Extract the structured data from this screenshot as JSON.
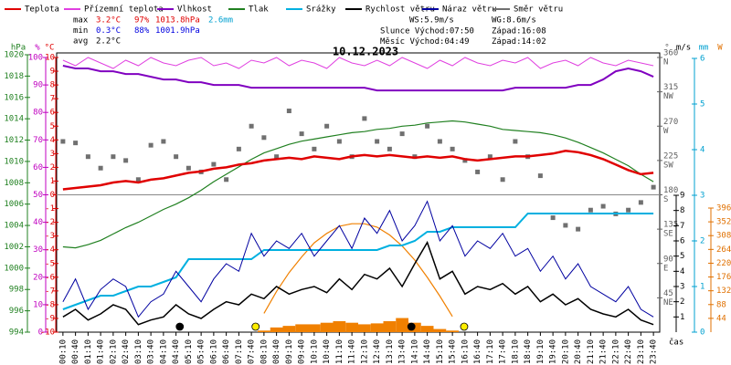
{
  "chart_data": {
    "type": "line",
    "title": "10.12.2023",
    "x_label": "čas",
    "categories": [
      "00:10",
      "00:40",
      "01:10",
      "01:40",
      "02:10",
      "02:40",
      "03:10",
      "03:40",
      "04:10",
      "04:40",
      "05:10",
      "05:40",
      "06:10",
      "06:40",
      "07:10",
      "07:40",
      "08:10",
      "08:40",
      "09:10",
      "09:40",
      "10:10",
      "10:40",
      "11:10",
      "11:40",
      "12:10",
      "12:40",
      "13:10",
      "13:40",
      "14:10",
      "14:40",
      "15:10",
      "15:40",
      "16:10",
      "16:40",
      "17:10",
      "17:40",
      "18:10",
      "18:40",
      "19:10",
      "19:40",
      "20:10",
      "20:40",
      "21:10",
      "21:40",
      "22:10",
      "22:40",
      "23:10",
      "23:40"
    ],
    "axes": {
      "hpa": {
        "label": "hPa",
        "color": "#208020",
        "lim": [
          994,
          1020
        ],
        "ticks": [
          994,
          996,
          998,
          1000,
          1002,
          1004,
          1006,
          1008,
          1010,
          1012,
          1014,
          1016,
          1018,
          1020
        ]
      },
      "pct": {
        "label": "%",
        "color": "#c000c0",
        "lim": [
          0,
          100
        ],
        "ticks": [
          0,
          10,
          20,
          30,
          40,
          50,
          60,
          70,
          80,
          90,
          100
        ]
      },
      "temp": {
        "label": "°C",
        "color": "#e00000",
        "lim": [
          -10,
          10
        ],
        "ticks": [
          -10,
          -9,
          -8,
          -7,
          -6,
          -5,
          -4,
          -3,
          -2,
          -1,
          0,
          1,
          2,
          3,
          4,
          5,
          6,
          7,
          8,
          9,
          10
        ]
      },
      "deg": {
        "label": "°",
        "color": "#606060",
        "lim": [
          0,
          360
        ],
        "ticks": [
          45,
          90,
          135,
          180,
          225,
          270,
          315,
          360
        ],
        "compass": [
          "NE",
          "E",
          "SE",
          "S",
          "SW",
          "W",
          "NW",
          "N"
        ]
      },
      "ms": {
        "label": "m/s",
        "color": "#000000",
        "lim": [
          0,
          9
        ],
        "ticks": [
          1,
          2,
          3,
          4,
          5,
          6,
          7,
          8,
          9
        ]
      },
      "mm": {
        "label": "mm",
        "color": "#00a0d0",
        "lim": [
          0,
          6
        ],
        "ticks": [
          0,
          1,
          2,
          3,
          4,
          5,
          6
        ]
      },
      "w": {
        "label": "W",
        "color": "#e07000",
        "lim": [
          0,
          396
        ],
        "ticks": [
          44,
          88,
          132,
          176,
          220,
          264,
          308,
          352,
          396
        ]
      }
    },
    "series": [
      {
        "name": "Teplota",
        "color": "#e00000",
        "axis": "temp",
        "style": "line",
        "width": 2.5,
        "values": [
          0.4,
          0.5,
          0.6,
          0.7,
          0.9,
          1.0,
          0.9,
          1.1,
          1.2,
          1.4,
          1.6,
          1.7,
          1.9,
          2.0,
          2.2,
          2.3,
          2.5,
          2.6,
          2.7,
          2.6,
          2.8,
          2.7,
          2.6,
          2.8,
          2.9,
          2.8,
          2.9,
          2.8,
          2.7,
          2.8,
          2.7,
          2.8,
          2.6,
          2.5,
          2.6,
          2.7,
          2.8,
          2.8,
          2.9,
          3.0,
          3.2,
          3.1,
          2.9,
          2.6,
          2.2,
          1.8,
          1.5,
          1.6
        ]
      },
      {
        "name": "Přízemní teplota",
        "color": "#e040e0",
        "axis": "pct",
        "style": "line",
        "width": 1,
        "values": [
          99,
          97,
          100,
          98,
          96,
          99,
          97,
          100,
          98,
          97,
          99,
          100,
          97,
          98,
          96,
          99,
          98,
          100,
          97,
          99,
          98,
          96,
          100,
          98,
          97,
          99,
          97,
          100,
          98,
          96,
          99,
          97,
          100,
          98,
          97,
          99,
          98,
          100,
          96,
          98,
          99,
          97,
          100,
          98,
          97,
          99,
          98,
          97
        ]
      },
      {
        "name": "Vlhkost",
        "color": "#8000c0",
        "axis": "pct",
        "style": "line",
        "width": 2,
        "values": [
          97,
          96,
          96,
          95,
          95,
          94,
          94,
          93,
          92,
          92,
          91,
          91,
          90,
          90,
          90,
          89,
          89,
          89,
          89,
          89,
          89,
          89,
          89,
          89,
          89,
          88,
          88,
          88,
          88,
          88,
          88,
          88,
          88,
          88,
          88,
          88,
          89,
          89,
          89,
          89,
          89,
          90,
          90,
          92,
          95,
          96,
          95,
          93
        ]
      },
      {
        "name": "Tlak",
        "color": "#208020",
        "axis": "hpa",
        "style": "line",
        "width": 1.2,
        "values": [
          1002.0,
          1001.9,
          1002.2,
          1002.6,
          1003.2,
          1003.8,
          1004.3,
          1004.9,
          1005.5,
          1006.0,
          1006.6,
          1007.3,
          1008.1,
          1008.8,
          1009.5,
          1010.2,
          1010.8,
          1011.2,
          1011.6,
          1011.9,
          1012.1,
          1012.3,
          1012.5,
          1012.7,
          1012.8,
          1013.0,
          1013.1,
          1013.3,
          1013.4,
          1013.6,
          1013.7,
          1013.8,
          1013.7,
          1013.5,
          1013.3,
          1013.0,
          1012.9,
          1012.8,
          1012.7,
          1012.5,
          1012.2,
          1011.8,
          1011.3,
          1010.8,
          1010.2,
          1009.6,
          1008.8,
          1008.1
        ]
      },
      {
        "name": "Srážky",
        "color": "#00b0e0",
        "axis": "mm",
        "style": "line",
        "width": 2,
        "values": [
          0.5,
          0.6,
          0.7,
          0.8,
          0.8,
          0.9,
          1.0,
          1.0,
          1.1,
          1.2,
          1.6,
          1.6,
          1.6,
          1.6,
          1.6,
          1.6,
          1.8,
          1.8,
          1.8,
          1.8,
          1.8,
          1.8,
          1.8,
          1.8,
          1.8,
          1.8,
          1.9,
          1.9,
          2.0,
          2.2,
          2.2,
          2.3,
          2.3,
          2.3,
          2.3,
          2.3,
          2.3,
          2.6,
          2.6,
          2.6,
          2.6,
          2.6,
          2.6,
          2.6,
          2.6,
          2.6,
          2.6,
          2.6
        ]
      },
      {
        "name": "Rychlost větru",
        "color": "#000000",
        "axis": "ms",
        "style": "line",
        "width": 1.5,
        "values": [
          1.0,
          1.5,
          0.8,
          1.2,
          1.8,
          1.5,
          0.5,
          0.8,
          1.0,
          1.8,
          1.2,
          0.9,
          1.5,
          2.0,
          1.8,
          2.5,
          2.2,
          3.0,
          2.5,
          2.8,
          3.0,
          2.6,
          3.5,
          2.8,
          3.8,
          3.5,
          4.2,
          3.0,
          4.5,
          5.9,
          3.5,
          4.0,
          2.5,
          3.0,
          2.8,
          3.2,
          2.5,
          3.0,
          2.0,
          2.5,
          1.8,
          2.2,
          1.5,
          1.2,
          1.0,
          1.5,
          0.8,
          0.5
        ]
      },
      {
        "name": "Náraz větru",
        "color": "#0000a0",
        "axis": "ms",
        "style": "line",
        "width": 1,
        "values": [
          2.0,
          3.5,
          1.5,
          2.8,
          3.5,
          3.0,
          1.0,
          2.0,
          2.5,
          4.0,
          3.0,
          2.0,
          3.5,
          4.5,
          4.0,
          6.5,
          5.0,
          6.0,
          5.5,
          6.5,
          5.0,
          6.0,
          7.0,
          5.5,
          7.5,
          6.5,
          8.0,
          6.0,
          7.0,
          8.6,
          6.0,
          7.0,
          5.0,
          6.0,
          5.5,
          6.5,
          5.0,
          5.5,
          4.0,
          5.0,
          3.5,
          4.5,
          3.0,
          2.5,
          2.0,
          3.0,
          1.5,
          1.0
        ]
      },
      {
        "name": "Směr větru",
        "color": "#707070",
        "axis": "deg",
        "style": "points",
        "values": [
          250,
          248,
          230,
          215,
          230,
          225,
          200,
          245,
          250,
          230,
          215,
          210,
          220,
          200,
          240,
          270,
          255,
          230,
          290,
          260,
          240,
          270,
          250,
          230,
          280,
          250,
          240,
          260,
          230,
          270,
          250,
          240,
          225,
          210,
          230,
          200,
          250,
          230,
          205,
          150,
          140,
          135,
          160,
          165,
          155,
          160,
          170,
          190
        ]
      }
    ],
    "sun_elevation": {
      "color": "#f08000",
      "axis": "w",
      "values": [
        null,
        null,
        null,
        null,
        null,
        null,
        null,
        null,
        null,
        null,
        null,
        null,
        null,
        null,
        null,
        null,
        60,
        130,
        190,
        240,
        285,
        315,
        338,
        346,
        346,
        335,
        310,
        275,
        230,
        175,
        115,
        50,
        null,
        null,
        null,
        null,
        null,
        null,
        null,
        null,
        null,
        null,
        null,
        null,
        null,
        null,
        null,
        null
      ]
    },
    "radiation": {
      "color": "#f08000",
      "axis": "w",
      "values": [
        0,
        0,
        0,
        0,
        0,
        0,
        0,
        0,
        0,
        0,
        0,
        0,
        0,
        0,
        0,
        0,
        5,
        15,
        20,
        25,
        25,
        30,
        35,
        30,
        25,
        28,
        35,
        45,
        30,
        20,
        10,
        5,
        0,
        0,
        0,
        0,
        0,
        0,
        0,
        0,
        0,
        0,
        0,
        0,
        0,
        0,
        0,
        0
      ]
    },
    "stats": [
      {
        "label": "max",
        "color": "#e00000",
        "temp": "3.2°C",
        "humidity": "97%",
        "pressure": "1013.8hPa",
        "precip": "2.6mm"
      },
      {
        "label": "min",
        "color": "#0000e0",
        "temp": "0.3°C",
        "humidity": "88%",
        "pressure": "1001.9hPa"
      },
      {
        "label": "avg",
        "color": "#000000",
        "temp": "2.2°C"
      }
    ],
    "wind": {
      "ws": "WS:5.9m/s",
      "wg": "WG:8.6m/s"
    },
    "sun": {
      "label": "Slunce Východ:",
      "rise": "07:50",
      "set_label": "Západ:",
      "set": "16:08",
      "color": "#ffee00"
    },
    "moon": {
      "label": "Měsíc Východ:",
      "rise": "04:49",
      "set_label": "Západ:",
      "set": "14:02",
      "color": "#000000"
    }
  }
}
